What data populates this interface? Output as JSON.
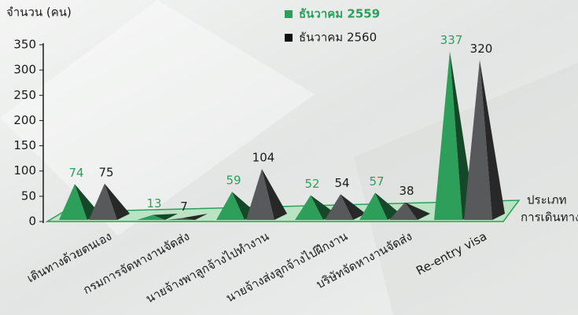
{
  "chart_data": {
    "type": "pyramid",
    "y_label": "จำนวน (คน)",
    "x_label": [
      "ประเภท",
      "การเดินทาง"
    ],
    "categories": [
      "เดินทางด้วยตนเอง",
      "กรมการจัดหางานจัดส่ง",
      "นายจ้างพาลูกจ้างไปทำงาน",
      "นายจ้างส่งลูกจ้างไปฝึกงาน",
      "บริษัทจัดหางานจัดส่ง",
      "Re-entry visa"
    ],
    "series": [
      {
        "name": "ธันวาคม 2559",
        "color": "#2e9e5b",
        "values": [
          74,
          13,
          59,
          52,
          57,
          337
        ]
      },
      {
        "name": "ธันวาคม 2560",
        "color": "#58595b",
        "values": [
          75,
          7,
          104,
          54,
          38,
          320
        ]
      }
    ],
    "ylim": [
      0,
      350
    ],
    "yticks": [
      0,
      50,
      100,
      150,
      200,
      250,
      300,
      350
    ]
  }
}
